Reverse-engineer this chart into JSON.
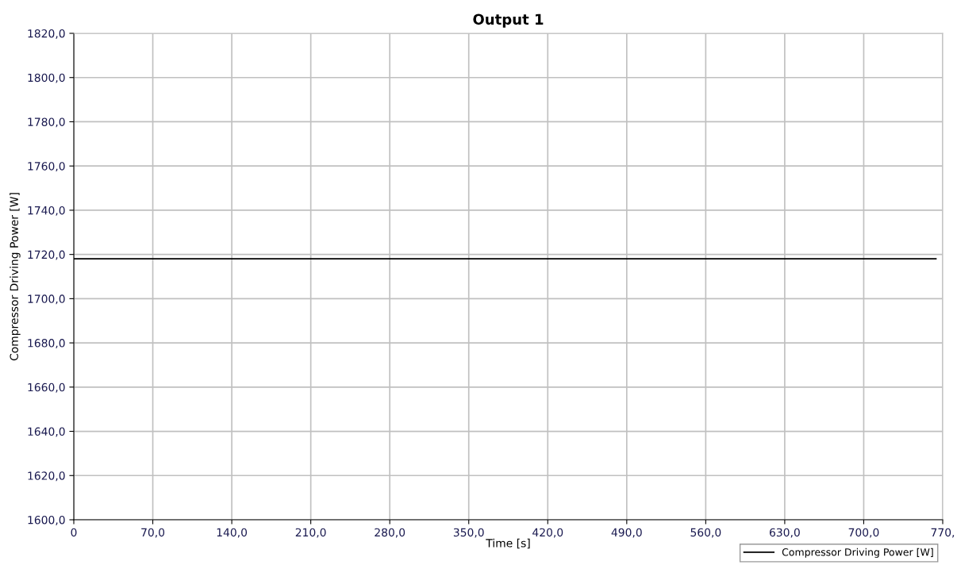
{
  "chart_data": {
    "type": "line",
    "title": "Output 1",
    "xlabel": "Time [s]",
    "ylabel": "Compressor Driving Power [W]",
    "series": [
      {
        "name": "Compressor Driving Power [W]",
        "color": "#000000",
        "x": [
          0,
          764
        ],
        "values": [
          1718,
          1718
        ]
      }
    ],
    "xlim": [
      0,
      770
    ],
    "ylim": [
      1600,
      1820
    ],
    "xticks": [
      0,
      {
        "value": 70,
        "label": "70,0"
      },
      {
        "value": 140,
        "label": "140,0"
      },
      {
        "value": 210,
        "label": "210,0"
      },
      {
        "value": 280,
        "label": "280,0"
      },
      {
        "value": 350,
        "label": "350,0"
      },
      {
        "value": 420,
        "label": "420,0"
      },
      {
        "value": 490,
        "label": "490,0"
      },
      {
        "value": 560,
        "label": "560,0"
      },
      {
        "value": 630,
        "label": "630,0"
      },
      {
        "value": 700,
        "label": "700,0"
      },
      {
        "value": 770,
        "label": "770,"
      }
    ],
    "yticks": [
      {
        "value": 1600,
        "label": "1600,0"
      },
      {
        "value": 1620,
        "label": "1620,0"
      },
      {
        "value": 1640,
        "label": "1640,0"
      },
      {
        "value": 1660,
        "label": "1660,0"
      },
      {
        "value": 1680,
        "label": "1680,0"
      },
      {
        "value": 1700,
        "label": "1700,0"
      },
      {
        "value": 1720,
        "label": "1720,0"
      },
      {
        "value": 1740,
        "label": "1740,0"
      },
      {
        "value": 1760,
        "label": "1760,0"
      },
      {
        "value": 1780,
        "label": "1780,0"
      },
      {
        "value": 1800,
        "label": "1800,0"
      },
      {
        "value": 1820,
        "label": "1820,0"
      }
    ],
    "grid": true,
    "legend": "bottom right",
    "marker": "none",
    "line_style": "solid"
  }
}
